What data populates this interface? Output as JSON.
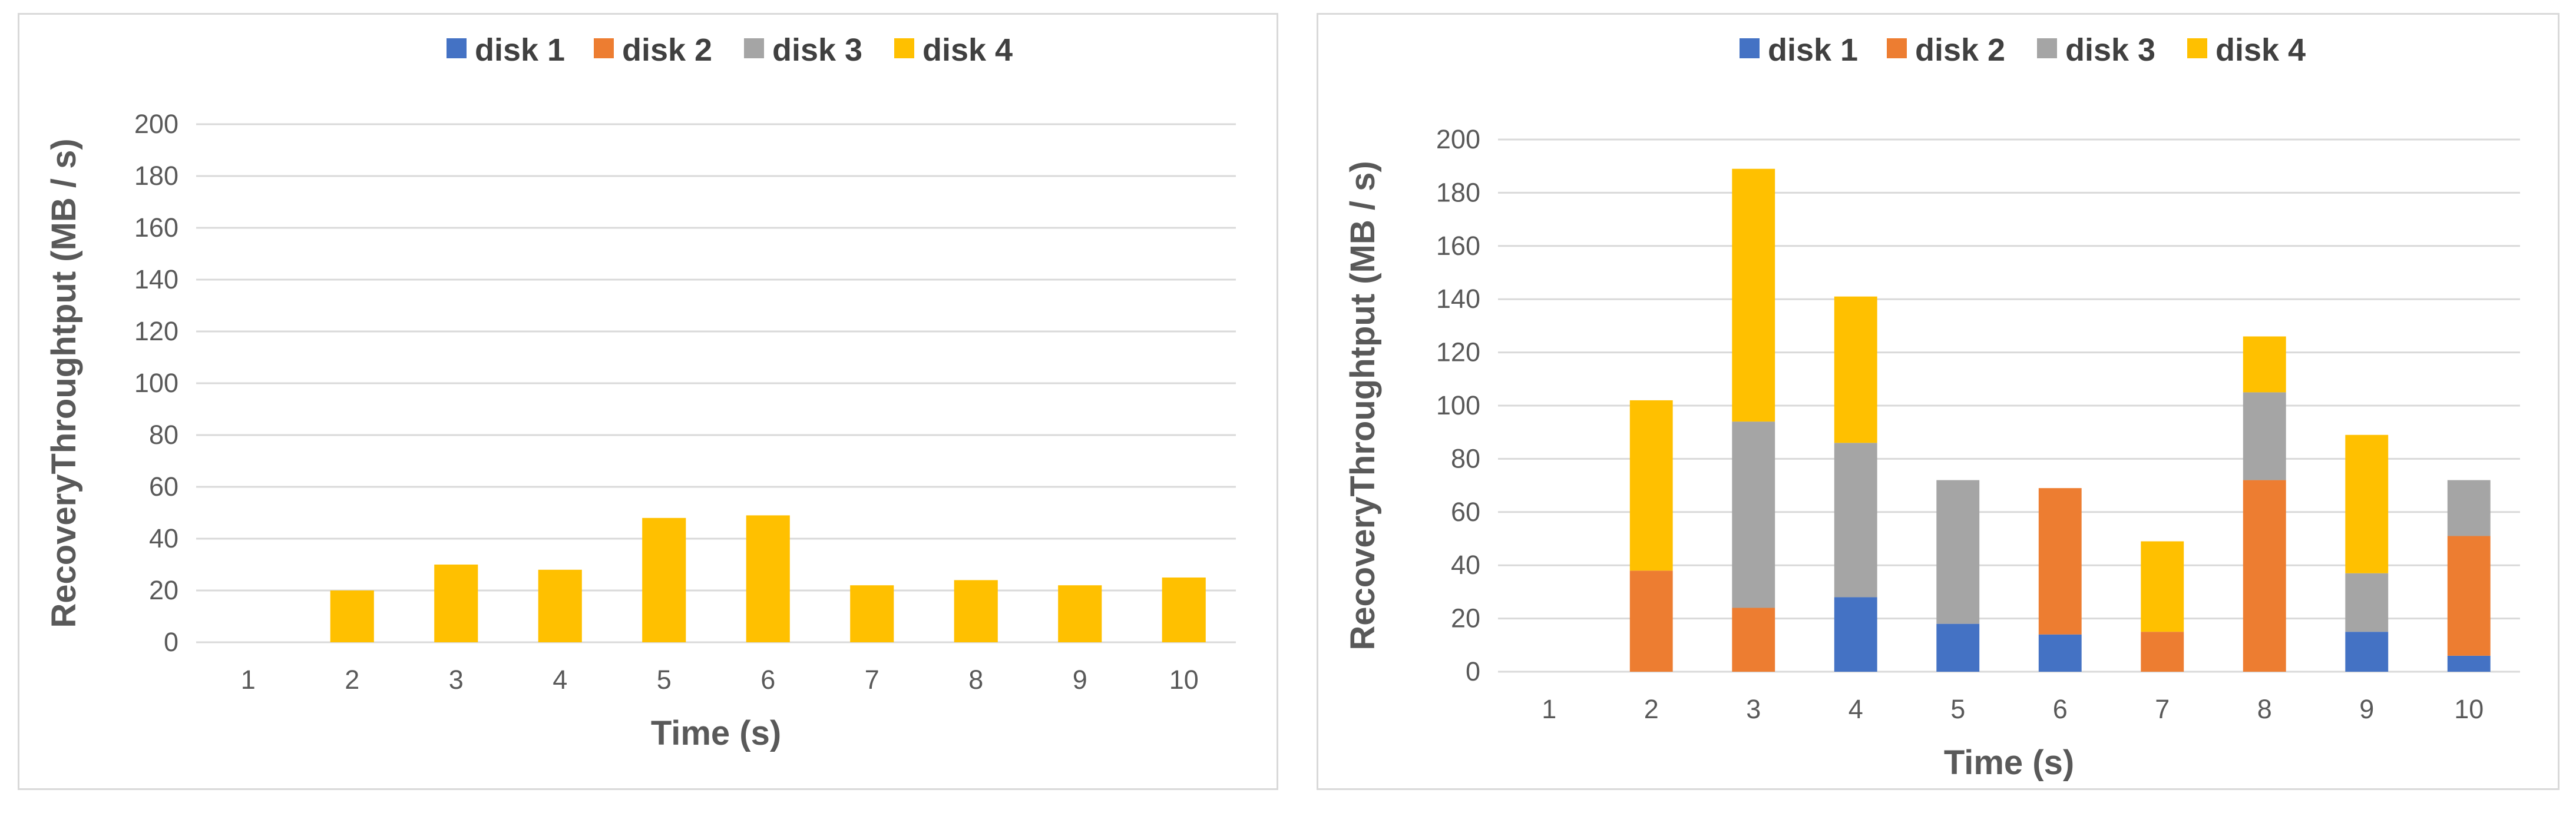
{
  "chart_data": [
    {
      "type": "bar",
      "stacked": true,
      "categories": [
        "1",
        "2",
        "3",
        "4",
        "5",
        "6",
        "7",
        "8",
        "9",
        "10"
      ],
      "series": [
        {
          "name": "disk 1",
          "values": [
            0,
            0,
            0,
            0,
            0,
            0,
            0,
            0,
            0,
            0
          ]
        },
        {
          "name": "disk 2",
          "values": [
            0,
            0,
            0,
            0,
            0,
            0,
            0,
            0,
            0,
            0
          ]
        },
        {
          "name": "disk 3",
          "values": [
            0,
            0,
            0,
            0,
            0,
            0,
            0,
            0,
            0,
            0
          ]
        },
        {
          "name": "disk 4",
          "values": [
            0,
            20,
            30,
            28,
            48,
            49,
            22,
            24,
            22,
            25
          ]
        }
      ],
      "xlabel": "Time (s)",
      "ylabel": "RecoveryThroughtput (MB / s)",
      "ylim": [
        0,
        200
      ],
      "yticks": [
        0,
        20,
        40,
        60,
        80,
        100,
        120,
        140,
        160,
        180,
        200
      ],
      "grid": true,
      "legend": "top-center"
    },
    {
      "type": "bar",
      "stacked": true,
      "categories": [
        "1",
        "2",
        "3",
        "4",
        "5",
        "6",
        "7",
        "8",
        "9",
        "10"
      ],
      "series": [
        {
          "name": "disk 1",
          "values": [
            0,
            0,
            0,
            28,
            18,
            14,
            0,
            0,
            15,
            6
          ]
        },
        {
          "name": "disk 2",
          "values": [
            0,
            38,
            24,
            0,
            0,
            55,
            15,
            72,
            0,
            45
          ]
        },
        {
          "name": "disk 3",
          "values": [
            0,
            0,
            70,
            58,
            54,
            0,
            0,
            33,
            22,
            21
          ]
        },
        {
          "name": "disk 4",
          "values": [
            0,
            64,
            95,
            55,
            0,
            0,
            34,
            21,
            52,
            0
          ]
        }
      ],
      "xlabel": "Time (s)",
      "ylabel": "RecoveryThroughtput (MB / s)",
      "ylim": [
        0,
        200
      ],
      "yticks": [
        0,
        20,
        40,
        60,
        80,
        100,
        120,
        140,
        160,
        180,
        200
      ],
      "grid": true,
      "legend": "top-center"
    }
  ],
  "colors": {
    "disk 1": "#4472c4",
    "disk 2": "#ed7d31",
    "disk 3": "#a5a5a5",
    "disk 4": "#ffc000",
    "grid": "#d9d9d9",
    "axis_text": "#595959"
  }
}
